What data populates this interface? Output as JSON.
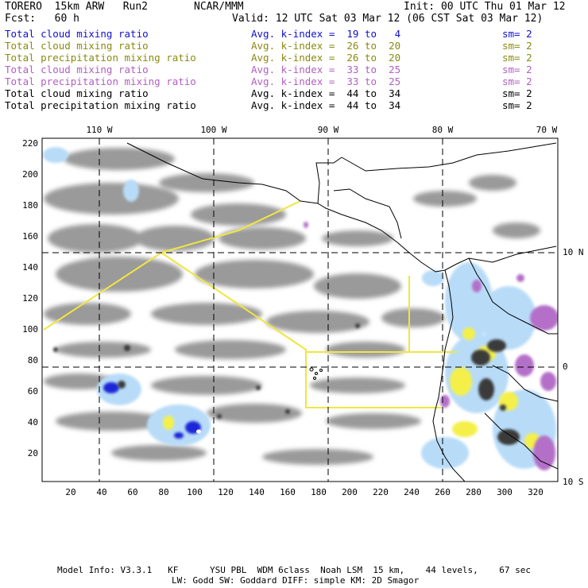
{
  "header": {
    "model": "TORERO  15km ARW   Run2",
    "org": "NCAR/MMM",
    "init": "Init: 00 UTC Thu 01 Mar 12",
    "fcst": "Fcst:   60 h",
    "valid": "Valid: 12 UTC Sat 03 Mar 12 (06 CST Sat 03 Mar 12)"
  },
  "legend": [
    {
      "field": "Total cloud mixing ratio",
      "kindex": "Avg. k-index =  19 to   4",
      "sm": "sm= 2",
      "color": "#1010d0"
    },
    {
      "field": "Total cloud mixing ratio",
      "kindex": "Avg. k-index =  26 to  20",
      "sm": "sm= 2",
      "color": "#8a8a10"
    },
    {
      "field": "Total precipitation mixing ratio",
      "kindex": "Avg. k-index =  26 to  20",
      "sm": "sm= 2",
      "color": "#8a8a10"
    },
    {
      "field": "Total cloud mixing ratio",
      "kindex": "Avg. k-index =  33 to  25",
      "sm": "sm= 2",
      "color": "#b060c0"
    },
    {
      "field": "Total precipitation mixing ratio",
      "kindex": "Avg. k-index =  33 to  25",
      "sm": "sm= 2",
      "color": "#b060c0"
    },
    {
      "field": "Total cloud mixing ratio",
      "kindex": "Avg. k-index =  44 to  34",
      "sm": "sm= 2",
      "color": "#000000"
    },
    {
      "field": "Total precipitation mixing ratio",
      "kindex": "Avg. k-index =  44 to  34",
      "sm": "sm= 2",
      "color": "#000000"
    }
  ],
  "map": {
    "lon_labels": [
      "110 W",
      "100 W",
      "90 W",
      "80 W",
      "70 W"
    ],
    "lat_labels": [
      "10 N",
      "0",
      "10 S"
    ],
    "grid_x_labels": [
      "20",
      "40",
      "60",
      "80",
      "100",
      "120",
      "140",
      "160",
      "180",
      "200",
      "220",
      "240",
      "260",
      "280",
      "300",
      "320"
    ],
    "grid_y_labels": [
      "220",
      "200",
      "180",
      "160",
      "140",
      "120",
      "100",
      "80",
      "60",
      "40",
      "20"
    ],
    "colors": {
      "gray": "#9a9a9a",
      "dark": "#3a3a3a",
      "light_blue": "#b8dcf8",
      "blue": "#1a28d8",
      "yellow": "#f4f04a",
      "violet": "#b470c8",
      "flight_track": "#f0e640",
      "coast": "#000000"
    }
  },
  "footer": {
    "line1": "Model Info: V3.3.1   KF      YSU PBL  WDM 6class  Noah LSM  15 km,    44 levels,    67 sec",
    "line2": "LW: Godd SW: Goddard DIFF: simple KM: 2D Smagor"
  }
}
